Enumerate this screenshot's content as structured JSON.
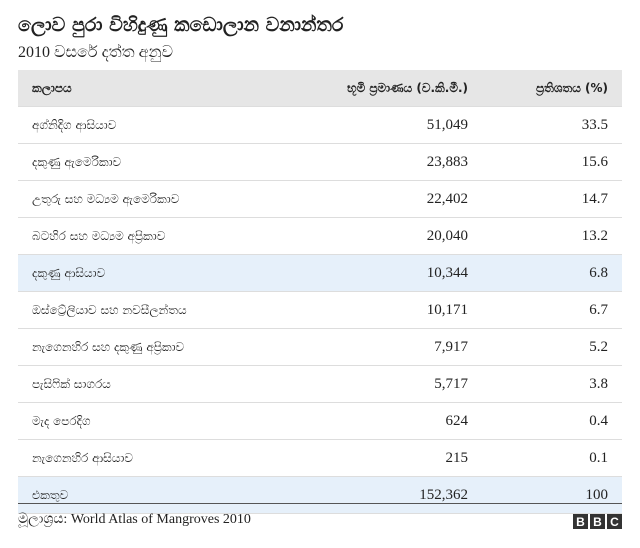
{
  "header": {
    "title": "ලොව පුරා විහිදුණු කඩොලාන වනාන්තර",
    "subtitle": "2010 වසරේ දත්ත අනුව"
  },
  "table": {
    "columns": [
      "කලාපය",
      "භූමි ප්‍රමාණය (ව.කි.මී.)",
      "ප්‍රතිශතය (%)"
    ],
    "rows": [
      [
        "අග්නිදිග ආසියාව",
        "51,049",
        "33.5"
      ],
      [
        "දකුණු ඇමෙරිකාව",
        "23,883",
        "15.6"
      ],
      [
        "උතුරු සහ මධ්‍යම ඇමෙරිකාව",
        "22,402",
        "14.7"
      ],
      [
        "බටහිර සහ මධ්‍යම අප්‍රිකාව",
        "20,040",
        "13.2"
      ],
      [
        "දකුණු ආසියාව",
        "10,344",
        "6.8"
      ],
      [
        "ඔස්ට්‍රේලියාව සහ නවසීලන්තය",
        "10,171",
        "6.7"
      ],
      [
        "නැගෙනහිර සහ දකුණු අප්‍රිකාව",
        "7,917",
        "5.2"
      ],
      [
        "පැසිෆික් සාගරය",
        "5,717",
        "3.8"
      ],
      [
        "මැද පෙරදිග",
        "624",
        "0.4"
      ],
      [
        "නැගෙනහිර ආසියාව",
        "215",
        "0.1"
      ],
      [
        "එකතුව",
        "152,362",
        "100"
      ]
    ],
    "highlight_rows": [
      4,
      10
    ],
    "highlight_color": "#e6f0fa"
  },
  "footer": {
    "source": "මූලාශ්‍රය: World Atlas of Mangroves 2010",
    "logo": [
      "B",
      "B",
      "C"
    ]
  }
}
